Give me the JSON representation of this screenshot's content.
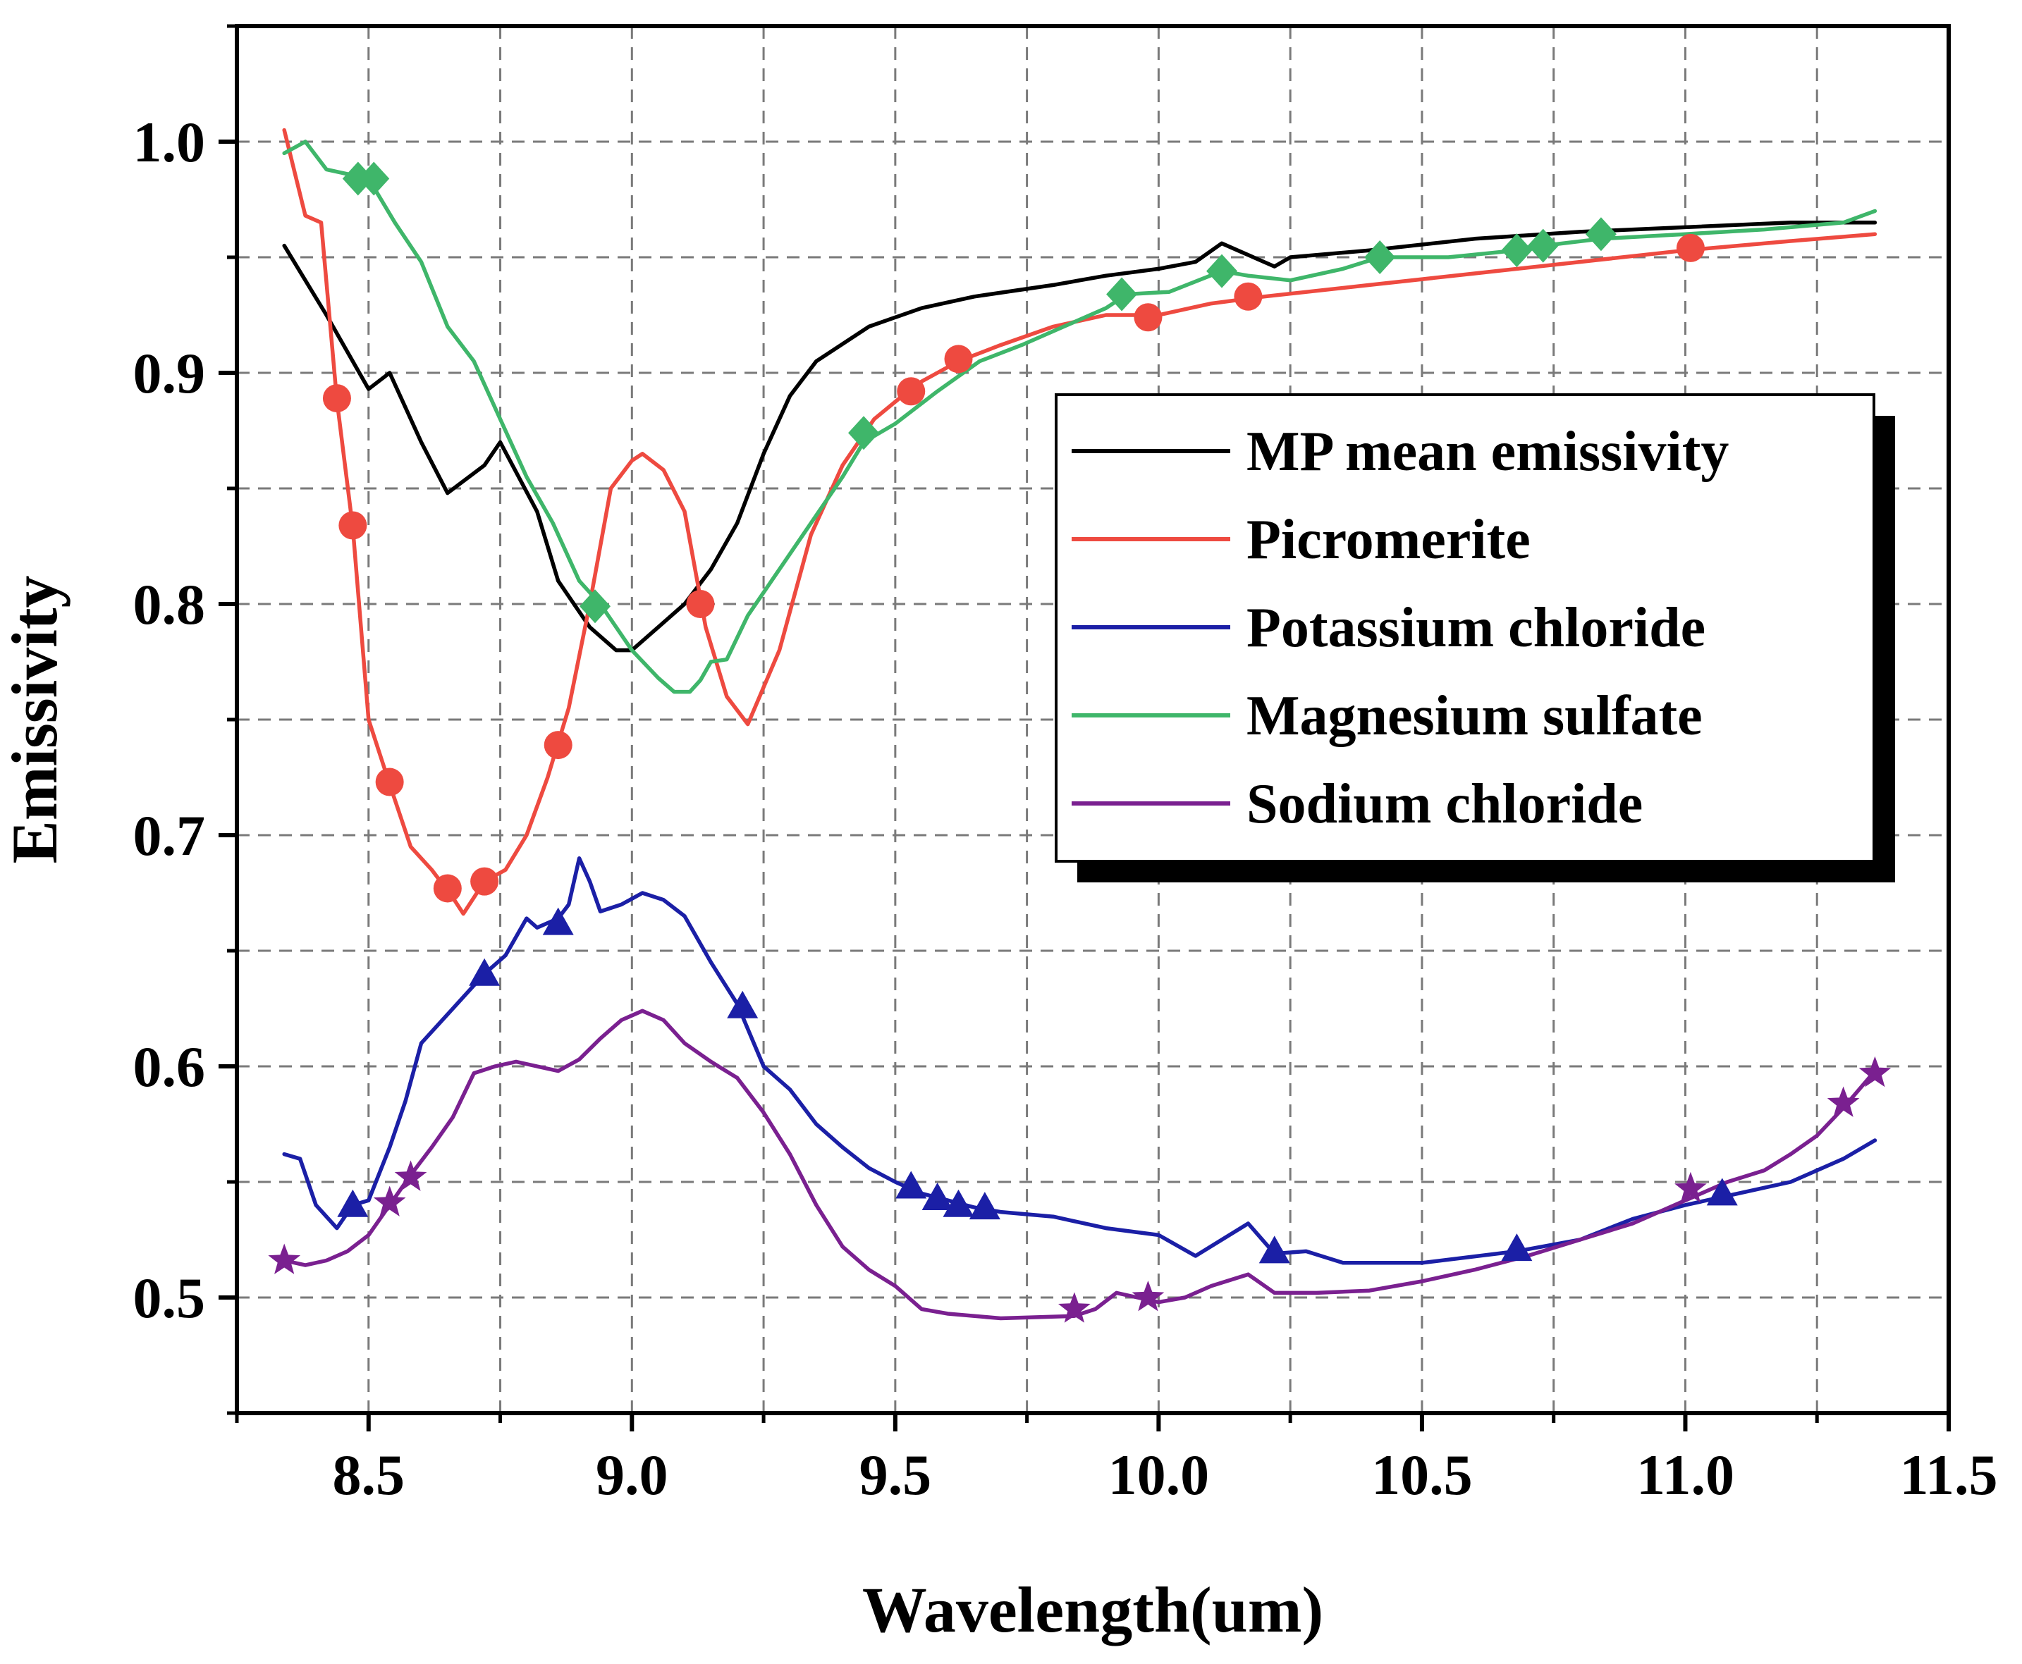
{
  "chart_data": {
    "type": "line",
    "xlabel": "Wavelength(um)",
    "ylabel": "Emissivity",
    "xlim": [
      8.25,
      11.5
    ],
    "ylim": [
      0.45,
      1.05
    ],
    "xticks": [
      8.5,
      9.0,
      9.5,
      10.0,
      10.5,
      11.0,
      11.5
    ],
    "yticks": [
      0.5,
      0.6,
      0.7,
      0.8,
      0.9,
      1.0
    ],
    "xtick_labels": [
      "8.5",
      "9.0",
      "9.5",
      "10.0",
      "10.5",
      "11.0",
      "11.5"
    ],
    "ytick_labels": [
      "0.5",
      "0.6",
      "0.7",
      "0.8",
      "0.9",
      "1.0"
    ],
    "grid": true,
    "legend_position": "center-right",
    "series": [
      {
        "name": "MP mean emissivity",
        "color": "#000000",
        "marker": "none",
        "x": [
          8.34,
          8.42,
          8.5,
          8.54,
          8.6,
          8.65,
          8.72,
          8.75,
          8.82,
          8.86,
          8.92,
          8.97,
          9.0,
          9.05,
          9.1,
          9.15,
          9.2,
          9.25,
          9.3,
          9.35,
          9.45,
          9.55,
          9.65,
          9.8,
          9.9,
          10.0,
          10.07,
          10.12,
          10.15,
          10.22,
          10.25,
          10.4,
          10.6,
          10.8,
          11.0,
          11.2,
          11.36
        ],
        "y": [
          0.955,
          0.925,
          0.893,
          0.9,
          0.87,
          0.848,
          0.86,
          0.87,
          0.84,
          0.81,
          0.79,
          0.78,
          0.78,
          0.79,
          0.8,
          0.815,
          0.835,
          0.865,
          0.89,
          0.905,
          0.92,
          0.928,
          0.933,
          0.938,
          0.942,
          0.945,
          0.948,
          0.956,
          0.953,
          0.946,
          0.95,
          0.953,
          0.958,
          0.961,
          0.963,
          0.965,
          0.965
        ]
      },
      {
        "name": "Picromerite",
        "color": "#ee4a40",
        "marker": "circle",
        "x": [
          8.34,
          8.38,
          8.41,
          8.44,
          8.47,
          8.5,
          8.54,
          8.58,
          8.62,
          8.66,
          8.68,
          8.72,
          8.76,
          8.8,
          8.84,
          8.88,
          8.92,
          8.96,
          9.0,
          9.02,
          9.06,
          9.1,
          9.14,
          9.18,
          9.22,
          9.28,
          9.34,
          9.4,
          9.46,
          9.54,
          9.62,
          9.7,
          9.8,
          9.9,
          10.0,
          10.1,
          10.2,
          10.4,
          10.6,
          10.8,
          11.0,
          11.2,
          11.36
        ],
        "y": [
          1.005,
          0.968,
          0.965,
          0.888,
          0.833,
          0.75,
          0.722,
          0.695,
          0.685,
          0.673,
          0.666,
          0.68,
          0.685,
          0.7,
          0.725,
          0.755,
          0.8,
          0.85,
          0.862,
          0.865,
          0.858,
          0.84,
          0.79,
          0.76,
          0.748,
          0.78,
          0.83,
          0.86,
          0.88,
          0.895,
          0.905,
          0.912,
          0.92,
          0.925,
          0.925,
          0.93,
          0.933,
          0.938,
          0.943,
          0.948,
          0.953,
          0.957,
          0.96
        ],
        "markers_x": [
          8.44,
          8.47,
          8.54,
          8.65,
          8.72,
          8.86,
          9.13,
          9.53,
          9.62,
          9.98,
          10.17,
          11.01
        ],
        "markers_y": [
          0.889,
          0.834,
          0.723,
          0.677,
          0.68,
          0.739,
          0.8,
          0.892,
          0.906,
          0.924,
          0.933,
          0.954
        ]
      },
      {
        "name": "Potassium chloride",
        "color": "#1b1fa6",
        "marker": "triangle",
        "x": [
          8.34,
          8.37,
          8.4,
          8.44,
          8.47,
          8.5,
          8.54,
          8.57,
          8.6,
          8.64,
          8.68,
          8.72,
          8.76,
          8.8,
          8.82,
          8.86,
          8.88,
          8.9,
          8.92,
          8.94,
          8.98,
          9.02,
          9.06,
          9.1,
          9.15,
          9.2,
          9.25,
          9.3,
          9.35,
          9.4,
          9.45,
          9.5,
          9.55,
          9.6,
          9.65,
          9.7,
          9.8,
          9.9,
          10.0,
          10.07,
          10.12,
          10.17,
          10.22,
          10.28,
          10.35,
          10.5,
          10.68,
          10.8,
          10.9,
          11.0,
          11.1,
          11.2,
          11.3,
          11.36
        ],
        "y": [
          0.562,
          0.56,
          0.54,
          0.53,
          0.54,
          0.542,
          0.565,
          0.585,
          0.61,
          0.62,
          0.63,
          0.64,
          0.648,
          0.664,
          0.66,
          0.664,
          0.67,
          0.69,
          0.68,
          0.667,
          0.67,
          0.675,
          0.672,
          0.665,
          0.645,
          0.627,
          0.6,
          0.59,
          0.575,
          0.565,
          0.556,
          0.55,
          0.545,
          0.542,
          0.539,
          0.537,
          0.535,
          0.53,
          0.527,
          0.518,
          0.525,
          0.532,
          0.519,
          0.52,
          0.515,
          0.515,
          0.52,
          0.525,
          0.534,
          0.54,
          0.545,
          0.55,
          0.56,
          0.568
        ],
        "markers_x": [
          8.47,
          8.72,
          8.86,
          9.21,
          9.53,
          9.58,
          9.62,
          9.67,
          10.22,
          10.68,
          11.07
        ],
        "markers_y": [
          0.54,
          0.64,
          0.662,
          0.626,
          0.548,
          0.543,
          0.54,
          0.539,
          0.52,
          0.521,
          0.545
        ]
      },
      {
        "name": "Magnesium sulfate",
        "color": "#3fb66a",
        "marker": "diamond",
        "x": [
          8.34,
          8.38,
          8.42,
          8.46,
          8.5,
          8.55,
          8.6,
          8.65,
          8.7,
          8.75,
          8.8,
          8.85,
          8.9,
          8.94,
          9.0,
          9.05,
          9.08,
          9.11,
          9.13,
          9.15,
          9.18,
          9.22,
          9.28,
          9.34,
          9.4,
          9.44,
          9.5,
          9.58,
          9.66,
          9.74,
          9.82,
          9.9,
          9.94,
          10.02,
          10.12,
          10.17,
          10.25,
          10.35,
          10.42,
          10.55,
          10.68,
          10.73,
          10.84,
          11.0,
          11.15,
          11.3,
          11.36
        ],
        "y": [
          0.995,
          1.0,
          0.988,
          0.986,
          0.984,
          0.965,
          0.948,
          0.92,
          0.905,
          0.88,
          0.855,
          0.835,
          0.81,
          0.8,
          0.78,
          0.768,
          0.762,
          0.762,
          0.767,
          0.775,
          0.776,
          0.795,
          0.815,
          0.835,
          0.855,
          0.87,
          0.878,
          0.892,
          0.905,
          0.912,
          0.92,
          0.928,
          0.934,
          0.935,
          0.944,
          0.942,
          0.94,
          0.945,
          0.95,
          0.95,
          0.953,
          0.955,
          0.958,
          0.96,
          0.962,
          0.965,
          0.97
        ],
        "markers_x": [
          8.48,
          8.51,
          8.93,
          9.44,
          9.93,
          10.12,
          10.42,
          10.68,
          10.73,
          10.84
        ],
        "markers_y": [
          0.984,
          0.984,
          0.799,
          0.874,
          0.934,
          0.944,
          0.95,
          0.953,
          0.955,
          0.96
        ]
      },
      {
        "name": "Sodium chloride",
        "color": "#7a2090",
        "marker": "star",
        "x": [
          8.34,
          8.38,
          8.42,
          8.46,
          8.5,
          8.54,
          8.58,
          8.62,
          8.66,
          8.7,
          8.74,
          8.78,
          8.82,
          8.86,
          8.9,
          8.94,
          8.98,
          9.02,
          9.06,
          9.1,
          9.15,
          9.2,
          9.25,
          9.3,
          9.35,
          9.4,
          9.45,
          9.5,
          9.55,
          9.6,
          9.7,
          9.84,
          9.88,
          9.92,
          9.96,
          10.0,
          10.05,
          10.1,
          10.17,
          10.22,
          10.3,
          10.4,
          10.5,
          10.6,
          10.7,
          10.8,
          10.9,
          11.0,
          11.08,
          11.15,
          11.2,
          11.25,
          11.3,
          11.36
        ],
        "y": [
          0.516,
          0.514,
          0.516,
          0.52,
          0.527,
          0.54,
          0.553,
          0.565,
          0.578,
          0.597,
          0.6,
          0.602,
          0.6,
          0.598,
          0.603,
          0.612,
          0.62,
          0.624,
          0.62,
          0.61,
          0.602,
          0.595,
          0.58,
          0.562,
          0.54,
          0.522,
          0.512,
          0.505,
          0.495,
          0.493,
          0.491,
          0.492,
          0.495,
          0.502,
          0.5,
          0.498,
          0.5,
          0.505,
          0.51,
          0.502,
          0.502,
          0.503,
          0.507,
          0.512,
          0.518,
          0.525,
          0.532,
          0.542,
          0.55,
          0.555,
          0.562,
          0.57,
          0.582,
          0.598
        ],
        "markers_x": [
          8.34,
          8.54,
          8.58,
          9.84,
          9.98,
          11.01,
          11.3,
          11.36
        ],
        "markers_y": [
          0.516,
          0.541,
          0.552,
          0.495,
          0.5,
          0.547,
          0.584,
          0.597
        ]
      }
    ]
  }
}
